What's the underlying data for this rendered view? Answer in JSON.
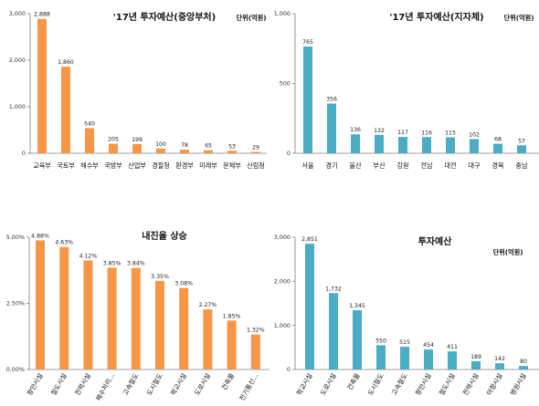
{
  "colors": {
    "orange": "#F79646",
    "blue": "#4BACC6"
  },
  "chart_data": [
    {
      "type": "bar",
      "title": "'17년 투자예산(중앙부처)",
      "unit_label": "단위(억원)",
      "categories": [
        "교육부",
        "국토부",
        "해수부",
        "국방부",
        "산업부",
        "경찰청",
        "환경부",
        "미래부",
        "문체부",
        "산림청"
      ],
      "values": [
        2888,
        1860,
        540,
        205,
        199,
        100,
        78,
        65,
        53,
        29
      ],
      "value_labels": [
        "2,888",
        "1,860",
        "540",
        "205",
        "199",
        "100",
        "78",
        "65",
        "53",
        "29"
      ],
      "ylim": [
        0,
        3000
      ],
      "yticks": [
        0,
        1000,
        2000,
        3000
      ],
      "ytick_labels": [
        "0",
        "1,000",
        "2,000",
        "3,000"
      ],
      "color": "#F79646",
      "label_rotation": 0
    },
    {
      "type": "bar",
      "title": "'17년 투자예산(지자체)",
      "unit_label": "단위(억원)",
      "categories": [
        "서울",
        "경기",
        "울산",
        "부산",
        "강원",
        "전남",
        "대전",
        "대구",
        "경북",
        "충남"
      ],
      "values": [
        765,
        356,
        136,
        132,
        117,
        116,
        115,
        102,
        68,
        57
      ],
      "value_labels": [
        "765",
        "356",
        "136",
        "132",
        "117",
        "116",
        "115",
        "102",
        "68",
        "57"
      ],
      "ylim": [
        0,
        1000
      ],
      "yticks": [
        0,
        500,
        1000
      ],
      "ytick_labels": [
        "0",
        "500",
        "1,000"
      ],
      "color": "#4BACC6",
      "label_rotation": 0
    },
    {
      "type": "bar",
      "title": "내진율 상승",
      "unit_label": "",
      "categories": [
        "항만시설",
        "철도시설",
        "전력시설",
        "폐수처리...",
        "고속철도",
        "도시철도",
        "학교시설",
        "도로시설",
        "건축물",
        "전기통신..."
      ],
      "values": [
        4.88,
        4.63,
        4.12,
        3.85,
        3.84,
        3.35,
        3.08,
        2.27,
        1.85,
        1.32
      ],
      "value_labels": [
        "4.88%",
        "4.63%",
        "4.12%",
        "3.85%",
        "3.84%",
        "3.35%",
        "3.08%",
        "2.27%",
        "1.85%",
        "1.32%"
      ],
      "ylim": [
        0,
        5.0
      ],
      "yticks": [
        0,
        2.5,
        5.0
      ],
      "ytick_labels": [
        "0.00%",
        "2.50%",
        "5.00%"
      ],
      "color": "#F79646",
      "label_rotation": -60
    },
    {
      "type": "bar",
      "title": "투자예산",
      "unit_label": "단위(억원)",
      "categories": [
        "학교시설",
        "도로시설",
        "건축물",
        "도시철도",
        "고속철도",
        "항만시설",
        "철도시설",
        "전력시설",
        "어항시설",
        "병원시설"
      ],
      "values": [
        2851,
        1732,
        1345,
        550,
        515,
        454,
        411,
        189,
        142,
        80
      ],
      "value_labels": [
        "2,851",
        "1,732",
        "1,345",
        "550",
        "515",
        "454",
        "411",
        "189",
        "142",
        "80"
      ],
      "ylim": [
        0,
        3000
      ],
      "yticks": [
        0,
        1000,
        2000,
        3000
      ],
      "ytick_labels": [
        "0",
        "1,000",
        "2,000",
        "3,000"
      ],
      "color": "#4BACC6",
      "label_rotation": -60
    }
  ]
}
